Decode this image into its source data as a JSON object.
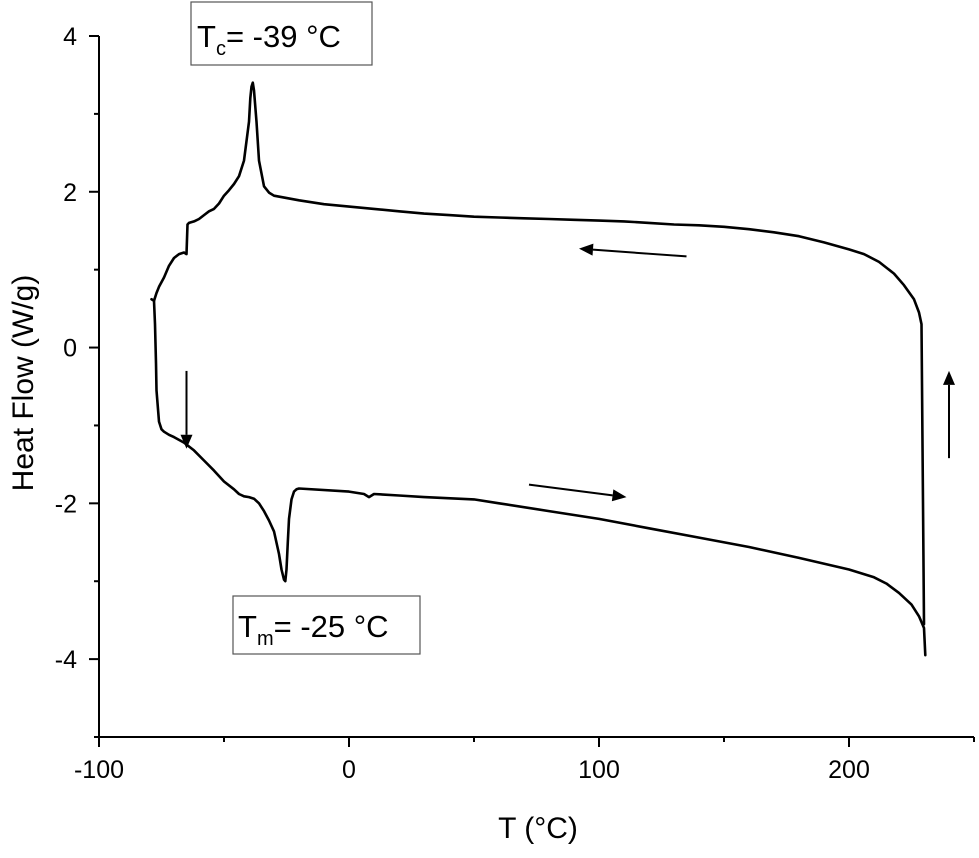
{
  "chart_data": {
    "type": "line",
    "xlabel": "T (°C)",
    "ylabel": "Heat Flow (W/g)",
    "xlim": [
      -100,
      250
    ],
    "ylim": [
      -5.0,
      4.0
    ],
    "x_ticks": [
      -100,
      0,
      100,
      200
    ],
    "x_minor_ticks": [
      -50,
      50,
      150,
      250
    ],
    "y_ticks": [
      4,
      2,
      0,
      -2,
      -4
    ],
    "y_minor_ticks": [
      3,
      1,
      -1,
      -3,
      -5
    ],
    "grid": false,
    "legend": "none",
    "series": [
      {
        "x": [
          230,
          229.6,
          229,
          228,
          226,
          222,
          218,
          212,
          206,
          200,
          190,
          180,
          170,
          160,
          150,
          140,
          130,
          120,
          110,
          100,
          90,
          80,
          70,
          60,
          50,
          40,
          30,
          20,
          10,
          0,
          -10,
          -20,
          -30,
          -32,
          -34,
          -36,
          -37,
          -38,
          -38.5,
          -39,
          -39.5,
          -40,
          -42,
          -44,
          -46,
          -48,
          -50,
          -52,
          -54,
          -56,
          -58,
          -60,
          -62,
          -64,
          -64.6,
          -65,
          -66,
          -68,
          -70,
          -72,
          -74,
          -76,
          -77,
          -78,
          -79
        ],
        "y": [
          -3.55,
          -2.0,
          0.3,
          0.45,
          0.62,
          0.8,
          0.95,
          1.1,
          1.2,
          1.26,
          1.35,
          1.43,
          1.48,
          1.52,
          1.55,
          1.57,
          1.58,
          1.6,
          1.62,
          1.63,
          1.64,
          1.65,
          1.66,
          1.67,
          1.68,
          1.7,
          1.72,
          1.75,
          1.78,
          1.81,
          1.84,
          1.89,
          1.95,
          1.99,
          2.07,
          2.4,
          2.9,
          3.3,
          3.4,
          3.35,
          3.2,
          2.9,
          2.4,
          2.2,
          2.1,
          2.02,
          1.95,
          1.85,
          1.78,
          1.75,
          1.7,
          1.65,
          1.62,
          1.6,
          1.58,
          1.2,
          1.22,
          1.2,
          1.15,
          1.05,
          0.9,
          0.78,
          0.7,
          0.6,
          0.62
        ]
      },
      {
        "x": [
          -78,
          -77.6,
          -77.2,
          -77,
          -76,
          -75,
          -74,
          -72,
          -70,
          -66,
          -62,
          -58,
          -54,
          -50,
          -46,
          -44,
          -42,
          -40,
          -38,
          -36,
          -34,
          -32,
          -30,
          -28,
          -27,
          -26,
          -25.5,
          -25,
          -24.5,
          -24,
          -23,
          -22,
          -21,
          -20,
          0,
          6,
          8,
          10,
          20,
          30,
          50,
          60,
          80,
          100,
          120,
          140,
          160,
          180,
          200,
          210,
          215,
          220,
          225,
          228,
          230,
          230.5
        ],
        "y": [
          0.6,
          0.3,
          -0.2,
          -0.55,
          -0.95,
          -1.05,
          -1.08,
          -1.12,
          -1.15,
          -1.22,
          -1.32,
          -1.45,
          -1.58,
          -1.72,
          -1.82,
          -1.88,
          -1.91,
          -1.92,
          -1.94,
          -2.0,
          -2.1,
          -2.22,
          -2.36,
          -2.65,
          -2.85,
          -2.98,
          -3.0,
          -2.85,
          -2.5,
          -2.2,
          -1.95,
          -1.85,
          -1.82,
          -1.81,
          -1.85,
          -1.88,
          -1.92,
          -1.88,
          -1.9,
          -1.92,
          -1.95,
          -2.0,
          -2.1,
          -2.2,
          -2.32,
          -2.44,
          -2.56,
          -2.7,
          -2.85,
          -2.95,
          -3.03,
          -3.15,
          -3.3,
          -3.45,
          -3.6,
          -3.95
        ]
      }
    ],
    "annotations": [
      {
        "label_main": "T",
        "label_sub": "c",
        "label_rest": "= -39 °C"
      },
      {
        "label_main": "T",
        "label_sub": "m",
        "label_rest": "= -25 °C"
      }
    ],
    "arrows": [
      {
        "from": [
          135,
          1.17
        ],
        "to": [
          92,
          1.27
        ]
      },
      {
        "from": [
          72,
          -1.76
        ],
        "to": [
          111,
          -1.92
        ]
      },
      {
        "from": [
          -65,
          -0.3
        ],
        "to": [
          -65,
          -1.3
        ]
      },
      {
        "from": [
          240,
          -1.42
        ],
        "to": [
          240,
          -0.3
        ]
      }
    ]
  }
}
